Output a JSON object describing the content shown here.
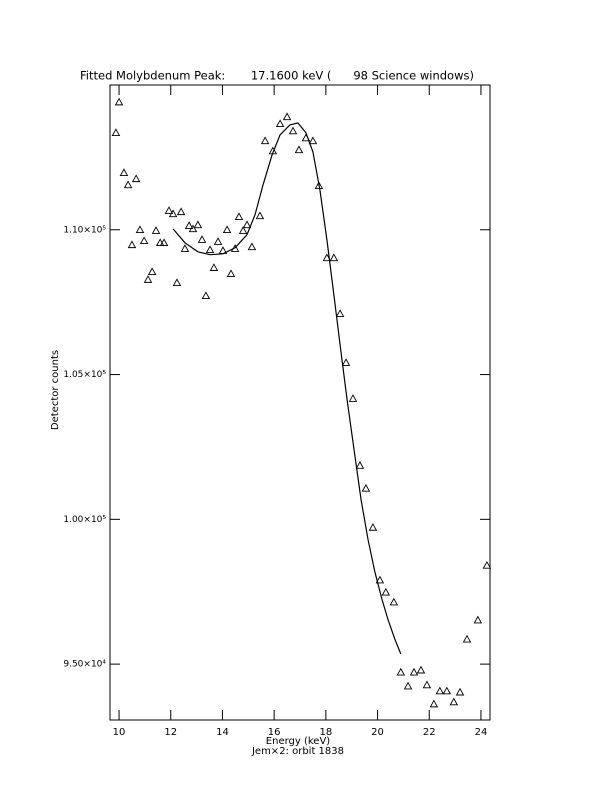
{
  "chart_data": {
    "type": "scatter",
    "title": "Fitted Molybdenum Peak:       17.1600 keV (      98 Science windows)",
    "x_label": "Energy (keV)",
    "y_label": "Detector counts",
    "subtitle": "Jem×2: orbit 1838",
    "xlim": [
      9.65,
      24.35
    ],
    "ylim": [
      93070,
      115000
    ],
    "xticks": [
      10,
      12,
      14,
      16,
      18,
      20,
      22,
      24
    ],
    "yticks": [
      {
        "value": 95000,
        "label": "9.50×10⁴"
      },
      {
        "value": 100000,
        "label": "1.00×10⁵"
      },
      {
        "value": 105000,
        "label": "1.05×10⁵"
      },
      {
        "value": 110000,
        "label": "1.10×10⁵"
      }
    ],
    "color": "#000000",
    "points": {
      "x": [
        9.88,
        10.0,
        10.19,
        10.35,
        10.5,
        10.66,
        10.81,
        10.97,
        11.12,
        11.28,
        11.43,
        11.59,
        11.74,
        11.93,
        12.09,
        12.24,
        12.4,
        12.55,
        12.71,
        12.86,
        13.05,
        13.21,
        13.36,
        13.52,
        13.67,
        13.83,
        14.02,
        14.18,
        14.33,
        14.49,
        14.64,
        14.8,
        14.95,
        15.14,
        15.45,
        15.65,
        15.95,
        16.23,
        16.5,
        16.73,
        16.96,
        17.23,
        17.5,
        17.73,
        18.04,
        18.31,
        18.55,
        18.78,
        19.05,
        19.32,
        19.55,
        19.82,
        20.09,
        20.32,
        20.63,
        20.9,
        21.18,
        21.41,
        21.68,
        21.91,
        22.18,
        22.41,
        22.68,
        22.95,
        23.19,
        23.46,
        23.88,
        24.23
      ],
      "values": [
        113350,
        114410,
        111970,
        111550,
        109480,
        111760,
        110000,
        109620,
        108280,
        108550,
        109970,
        109550,
        109550,
        110660,
        110550,
        108170,
        110620,
        109350,
        110140,
        110030,
        110170,
        109660,
        107720,
        109310,
        108690,
        109590,
        109280,
        110000,
        108480,
        109350,
        110450,
        109970,
        110170,
        109410,
        110480,
        113070,
        112720,
        113660,
        113900,
        113410,
        112760,
        113170,
        113070,
        111520,
        109030,
        109030,
        107100,
        105410,
        104170,
        101860,
        101070,
        99720,
        97900,
        97480,
        97140,
        94720,
        94240,
        94720,
        94790,
        94280,
        93620,
        94070,
        94070,
        93690,
        94030,
        95860,
        96520,
        98410
      ]
    },
    "fit": {
      "x": [
        12.09,
        12.55,
        13.05,
        13.52,
        14.02,
        14.49,
        14.95,
        15.26,
        15.57,
        15.92,
        16.23,
        16.61,
        16.92,
        17.23,
        17.5,
        17.77,
        18.04,
        18.31,
        18.55,
        18.82,
        19.09,
        19.36,
        19.63,
        19.9,
        20.17,
        20.4,
        20.67,
        20.9
      ],
      "values": [
        110030,
        109550,
        109240,
        109140,
        109170,
        109380,
        109830,
        110520,
        111550,
        112590,
        113280,
        113620,
        113690,
        113350,
        112690,
        111380,
        109660,
        107760,
        106030,
        104140,
        102410,
        100690,
        99310,
        98170,
        97240,
        96550,
        95860,
        95350
      ]
    }
  }
}
